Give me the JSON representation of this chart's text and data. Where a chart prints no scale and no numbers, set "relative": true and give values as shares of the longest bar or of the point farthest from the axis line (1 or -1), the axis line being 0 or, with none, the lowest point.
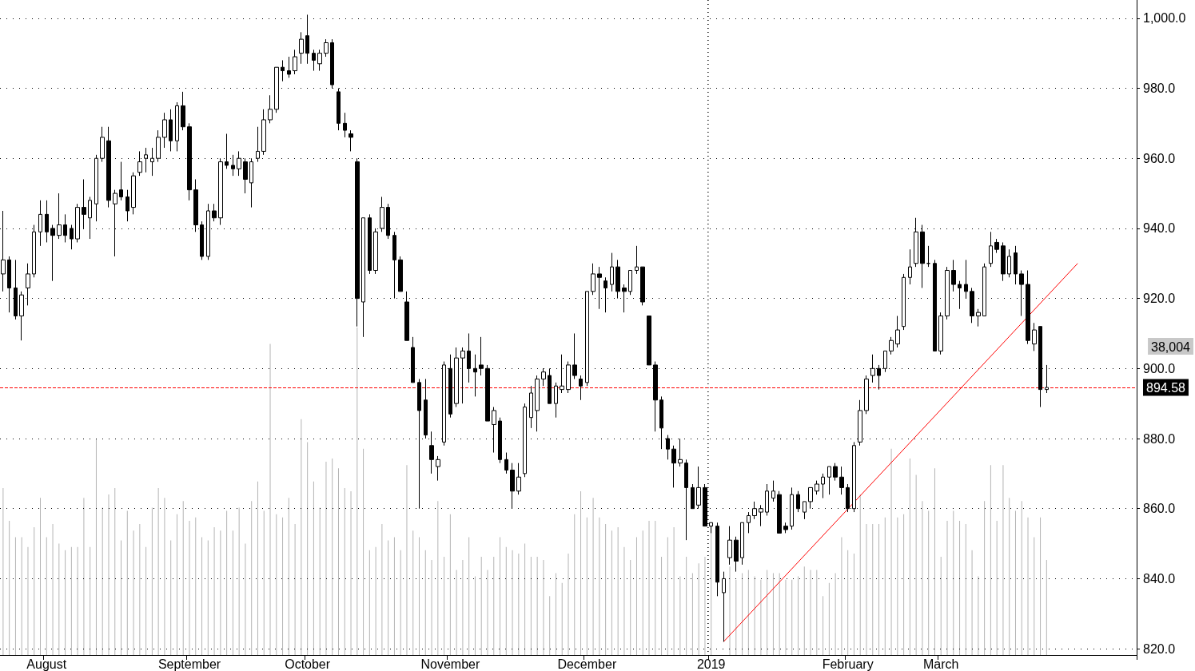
{
  "chart_data": [
    {
      "type": "candlestick",
      "categories": [
        null,
        null,
        null,
        null,
        null,
        null,
        null,
        "August",
        null,
        null,
        null,
        null,
        null,
        null,
        null,
        null,
        null,
        null,
        null,
        null,
        null,
        null,
        null,
        null,
        null,
        null,
        null,
        null,
        null,
        null,
        "September",
        null,
        null,
        null,
        null,
        null,
        null,
        null,
        null,
        null,
        null,
        null,
        null,
        null,
        null,
        null,
        null,
        null,
        null,
        "October",
        null,
        null,
        null,
        null,
        null,
        null,
        null,
        null,
        null,
        null,
        null,
        null,
        null,
        null,
        null,
        null,
        null,
        null,
        null,
        null,
        null,
        null,
        "November",
        null,
        null,
        null,
        null,
        null,
        null,
        null,
        null,
        null,
        null,
        null,
        null,
        null,
        null,
        null,
        null,
        null,
        null,
        null,
        null,
        null,
        "December",
        null,
        null,
        null,
        null,
        null,
        null,
        null,
        null,
        null,
        null,
        null,
        null,
        null,
        null,
        null,
        null,
        null,
        null,
        null,
        "2019",
        null,
        null,
        null,
        null,
        null,
        null,
        null,
        null,
        null,
        null,
        null,
        null,
        null,
        null,
        null,
        null,
        null,
        null,
        null,
        null,
        null,
        "February",
        null,
        null,
        null,
        null,
        null,
        null,
        null,
        null,
        null,
        null,
        null,
        null,
        null,
        null,
        "March",
        null,
        null,
        null,
        null,
        null,
        null,
        null,
        null,
        null,
        null,
        null,
        null,
        null,
        null,
        null,
        null,
        null,
        null,
        null,
        null,
        null,
        null,
        null,
        null,
        null,
        null,
        null,
        null,
        null,
        null,
        null
      ],
      "ohlc": [
        [
          927,
          945,
          922,
          931
        ],
        [
          931,
          932,
          916,
          923
        ],
        [
          923,
          931,
          914,
          915
        ],
        [
          915,
          922,
          908,
          921
        ],
        [
          923,
          930,
          918,
          927
        ],
        [
          927,
          941,
          926,
          939
        ],
        [
          939,
          948,
          935,
          944
        ],
        [
          944,
          948,
          936,
          939
        ],
        [
          940,
          941,
          925,
          938
        ],
        [
          938,
          950,
          937,
          941
        ],
        [
          941,
          944,
          936,
          938
        ],
        [
          940,
          941,
          934,
          937
        ],
        [
          937,
          947,
          936,
          946
        ],
        [
          946,
          954,
          940,
          944
        ],
        [
          943,
          949,
          937,
          948
        ],
        [
          947,
          961,
          942,
          960
        ],
        [
          960,
          969,
          959,
          966
        ],
        [
          965,
          969,
          946,
          948
        ],
        [
          947,
          951,
          932,
          950
        ],
        [
          951,
          959,
          948,
          949
        ],
        [
          949,
          951,
          942,
          945
        ],
        [
          946,
          956,
          944,
          955
        ],
        [
          956,
          962,
          955,
          959
        ],
        [
          960,
          963,
          956,
          961
        ],
        [
          959,
          963,
          955,
          960
        ],
        [
          960,
          968,
          959,
          966
        ],
        [
          966,
          973,
          963,
          971
        ],
        [
          971,
          974,
          962,
          965
        ],
        [
          965,
          976,
          962,
          975
        ],
        [
          975,
          979,
          968,
          969
        ],
        [
          969,
          970,
          948,
          951
        ],
        [
          951,
          954,
          939,
          941
        ],
        [
          941,
          942,
          931,
          932
        ],
        [
          932,
          947,
          931,
          945
        ],
        [
          945,
          947,
          942,
          943
        ],
        [
          943,
          960,
          941,
          959
        ],
        [
          959,
          967,
          957,
          958
        ],
        [
          958,
          961,
          955,
          957
        ],
        [
          957,
          962,
          955,
          960
        ],
        [
          959,
          960,
          950,
          954
        ],
        [
          953,
          960,
          946,
          959
        ],
        [
          960,
          969,
          959,
          962
        ],
        [
          962,
          974,
          961,
          971
        ],
        [
          971,
          978,
          970,
          974
        ],
        [
          974,
          986,
          973,
          986
        ],
        [
          986,
          988,
          982,
          985
        ],
        [
          985,
          989,
          983,
          984
        ],
        [
          985,
          991,
          984,
          989
        ],
        [
          990,
          996,
          987,
          994
        ],
        [
          995,
          1001,
          987,
          990
        ],
        [
          990,
          991,
          985,
          988
        ],
        [
          987,
          991,
          985,
          990
        ],
        [
          990,
          994,
          989,
          993
        ],
        [
          993,
          994,
          980,
          981
        ],
        [
          979,
          980,
          968,
          970
        ],
        [
          970,
          973,
          966,
          968
        ],
        [
          967,
          968,
          962,
          966
        ],
        [
          959,
          960,
          912,
          920
        ],
        [
          919,
          943,
          909,
          943
        ],
        [
          943,
          944,
          927,
          928
        ],
        [
          928,
          940,
          927,
          939
        ],
        [
          940,
          949,
          939,
          946
        ],
        [
          946,
          947,
          937,
          938
        ],
        [
          938,
          939,
          920,
          931
        ],
        [
          931,
          932,
          922,
          922
        ],
        [
          919,
          922,
          908,
          908
        ],
        [
          906,
          909,
          896,
          896
        ],
        [
          896,
          897,
          860,
          888
        ],
        [
          891,
          897,
          880,
          881
        ],
        [
          878,
          882,
          870,
          874
        ],
        [
          872,
          875,
          868,
          874
        ],
        [
          879,
          902,
          878,
          901
        ],
        [
          900,
          904,
          886,
          887
        ],
        [
          890,
          906,
          889,
          903
        ],
        [
          903,
          906,
          890,
          905
        ],
        [
          905,
          910,
          896,
          900
        ],
        [
          900,
          904,
          892,
          899
        ],
        [
          901,
          909,
          898,
          900
        ],
        [
          900,
          901,
          885,
          885
        ],
        [
          884,
          889,
          876,
          888
        ],
        [
          885,
          886,
          873,
          874
        ],
        [
          874,
          876,
          870,
          871
        ],
        [
          871,
          873,
          860,
          865
        ],
        [
          865,
          873,
          864,
          869
        ],
        [
          870,
          890,
          869,
          889
        ],
        [
          886,
          895,
          883,
          893
        ],
        [
          888,
          898,
          882,
          897
        ],
        [
          897,
          900,
          895,
          899
        ],
        [
          898,
          900,
          890,
          890
        ],
        [
          890,
          896,
          886,
          895
        ],
        [
          894,
          904,
          893,
          895
        ],
        [
          894,
          902,
          893,
          901
        ],
        [
          901,
          910,
          897,
          898
        ],
        [
          897,
          898,
          891,
          895
        ],
        [
          896,
          922,
          895,
          922
        ],
        [
          922,
          930,
          921,
          927
        ],
        [
          927,
          929,
          917,
          926
        ],
        [
          925,
          926,
          916,
          923
        ],
        [
          924,
          933,
          922,
          929
        ],
        [
          929,
          931,
          920,
          922
        ],
        [
          923,
          924,
          916,
          922
        ],
        [
          922,
          928,
          921,
          928
        ],
        [
          928,
          935,
          927,
          929
        ],
        [
          929,
          929,
          918,
          919
        ],
        [
          915,
          915,
          901,
          901
        ],
        [
          901,
          902,
          882,
          891
        ],
        [
          891,
          892,
          877,
          883
        ],
        [
          880,
          881,
          874,
          877
        ],
        [
          877,
          878,
          866,
          873
        ],
        [
          873,
          880,
          872,
          874
        ],
        [
          873,
          874,
          851,
          866
        ],
        [
          866,
          867,
          860,
          860
        ],
        [
          861,
          872,
          860,
          866
        ],
        [
          866,
          867,
          855,
          855
        ],
        [
          855,
          856,
          853,
          856
        ],
        [
          855,
          856,
          835,
          839
        ],
        [
          836,
          842,
          822,
          840
        ],
        [
          846,
          855,
          844,
          851
        ],
        [
          851,
          852,
          842,
          845
        ],
        [
          846,
          856,
          844,
          856
        ],
        [
          856,
          859,
          853,
          858
        ],
        [
          858,
          862,
          857,
          860
        ],
        [
          859,
          861,
          855,
          860
        ],
        [
          859,
          867,
          858,
          865
        ],
        [
          863,
          868,
          862,
          865
        ],
        [
          864,
          865,
          853,
          853
        ],
        [
          855,
          856,
          853,
          854
        ],
        [
          855,
          866,
          854,
          864
        ],
        [
          864,
          865,
          859,
          860
        ],
        [
          859,
          862,
          857,
          862
        ],
        [
          862,
          866,
          860,
          866
        ],
        [
          865,
          868,
          864,
          867
        ],
        [
          867,
          870,
          863,
          869
        ],
        [
          869,
          872,
          864,
          872
        ],
        [
          872,
          873,
          868,
          869
        ],
        [
          869,
          872,
          864,
          866
        ],
        [
          866,
          867,
          859,
          860
        ],
        [
          860,
          879,
          859,
          878
        ],
        [
          879,
          891,
          878,
          888
        ],
        [
          888,
          898,
          887,
          897
        ],
        [
          898,
          904,
          896,
          900
        ],
        [
          900,
          901,
          894,
          898
        ],
        [
          900,
          905,
          899,
          905
        ],
        [
          905,
          909,
          904,
          908
        ],
        [
          907,
          915,
          906,
          911
        ],
        [
          912,
          927,
          911,
          926
        ],
        [
          926,
          934,
          924,
          929
        ],
        [
          930,
          943,
          929,
          939
        ],
        [
          939,
          941,
          923,
          930
        ],
        [
          930,
          935,
          929,
          930
        ],
        [
          930,
          931,
          905,
          905
        ],
        [
          905,
          916,
          904,
          915
        ],
        [
          915,
          929,
          914,
          928
        ],
        [
          928,
          931,
          922,
          924
        ],
        [
          924,
          925,
          917,
          923
        ],
        [
          924,
          931,
          920,
          922
        ],
        [
          922,
          923,
          913,
          915
        ],
        [
          915,
          917,
          912,
          916
        ],
        [
          915,
          930,
          915,
          929
        ],
        [
          930,
          939,
          929,
          935
        ],
        [
          936,
          937,
          933,
          934
        ],
        [
          935,
          936,
          925,
          927
        ],
        [
          927,
          934,
          926,
          932
        ],
        [
          933,
          935,
          924,
          927
        ],
        [
          927,
          928,
          915,
          924
        ],
        [
          924,
          928,
          907,
          908
        ],
        [
          907,
          913,
          905,
          911
        ],
        [
          912,
          912,
          889,
          894
        ],
        [
          894,
          901,
          893,
          894.58
        ],
        null,
        null,
        null,
        null,
        null,
        null,
        null,
        null,
        null,
        null,
        null,
        null,
        null,
        null
      ],
      "series": [
        {
          "type": "line",
          "color": "#ff0000",
          "values": [
            null,
            null,
            null,
            null,
            null,
            null,
            null,
            null,
            null,
            null,
            null,
            null,
            null,
            null,
            null,
            null,
            null,
            null,
            null,
            null,
            null,
            null,
            null,
            null,
            null,
            null,
            null,
            null,
            null,
            null,
            null,
            null,
            null,
            null,
            null,
            null,
            null,
            null,
            null,
            null,
            null,
            null,
            null,
            null,
            null,
            null,
            null,
            null,
            null,
            null,
            null,
            null,
            null,
            null,
            null,
            null,
            null,
            null,
            null,
            null,
            null,
            null,
            null,
            null,
            null,
            null,
            null,
            null,
            null,
            null,
            null,
            null,
            null,
            null,
            null,
            null,
            null,
            null,
            null,
            null,
            null,
            null,
            null,
            null,
            null,
            null,
            null,
            null,
            null,
            null,
            null,
            null,
            null,
            null,
            null,
            null,
            null,
            null,
            null,
            null,
            null,
            null,
            null,
            null,
            null,
            null,
            null,
            null,
            null,
            null,
            null,
            null,
            null,
            null,
            null,
            null,
            822,
            null,
            null,
            null,
            null,
            null,
            null,
            null,
            null,
            null,
            null,
            null,
            null,
            null,
            null,
            null,
            null,
            null,
            null,
            null,
            null,
            null,
            null,
            null,
            null,
            null,
            null,
            null,
            null,
            null,
            null,
            null,
            null,
            null,
            null,
            null,
            null,
            null,
            null,
            null,
            null,
            null,
            null,
            null,
            null,
            null,
            null,
            null,
            null,
            null,
            null,
            null,
            null,
            null,
            null,
            null,
            null,
            930,
            null,
            null,
            null,
            null,
            null,
            null,
            null,
            null,
            null
          ]
        }
      ],
      "ylim": [
        818.2,
        1005.2
      ],
      "yticks": [
        {
          "value": 820,
          "label": "820.0"
        },
        {
          "value": 840,
          "label": "840.0"
        },
        {
          "value": 860,
          "label": "860.0"
        },
        {
          "value": 880,
          "label": "880.0"
        },
        {
          "value": 900,
          "label": "900.0"
        },
        {
          "value": 920,
          "label": "920.0"
        },
        {
          "value": 940,
          "label": "940.0"
        },
        {
          "value": 960,
          "label": "960.0"
        },
        {
          "value": 980,
          "label": "980.0"
        },
        {
          "value": 1000,
          "label": "1,000.0"
        }
      ],
      "grid": "y",
      "marker": "none",
      "ref_lines": [
        {
          "axis": "y",
          "value": 894.58,
          "label": "894.58",
          "color": "#ff0000",
          "line_style": "dashed"
        },
        {
          "axis": "x",
          "value": "2019",
          "color": "#000000",
          "line_style": "dotted"
        }
      ],
      "annotations": [
        "38,004"
      ]
    },
    {
      "type": "bar",
      "relative": true,
      "color": "#b4b4b4",
      "categories": [
        null,
        null,
        null,
        null,
        null,
        null,
        null,
        null,
        null,
        null,
        null,
        null,
        null,
        null,
        null,
        null,
        null,
        null,
        null,
        null,
        null,
        null,
        null,
        null,
        null,
        null,
        null,
        null,
        null,
        null,
        null,
        null,
        null,
        null,
        null,
        null,
        null,
        null,
        null,
        null,
        null,
        null,
        null,
        null,
        null,
        null,
        null,
        null,
        null,
        null,
        null,
        null,
        null,
        null,
        null,
        null,
        null,
        null,
        null,
        null,
        null,
        null,
        null,
        null,
        null,
        null,
        null,
        null,
        null,
        null,
        null,
        null,
        null,
        null,
        null,
        null,
        null,
        null,
        null,
        null,
        null,
        null,
        null,
        null,
        null,
        null,
        null,
        null,
        null,
        null,
        null,
        null,
        null,
        null,
        null,
        null,
        null,
        null,
        null,
        null,
        null,
        null,
        null,
        null,
        null,
        null,
        null,
        null,
        null,
        null,
        null,
        null,
        null,
        null,
        null,
        null,
        null,
        null,
        null,
        null,
        null,
        null,
        null,
        null,
        null,
        null,
        null,
        null,
        null,
        null,
        null,
        null,
        null,
        null,
        null,
        null,
        null,
        null,
        null,
        null,
        null,
        null,
        null,
        null,
        null,
        null,
        null,
        null,
        null,
        null,
        null,
        null,
        null,
        null,
        null,
        null,
        null,
        null,
        null,
        null,
        null,
        null,
        null,
        null,
        null,
        null,
        null,
        null,
        null,
        null,
        null,
        null,
        null,
        null,
        null,
        null,
        null,
        null,
        null,
        null,
        null,
        null,
        null
      ],
      "values": [
        0.51,
        0.41,
        0.36,
        0.36,
        0.33,
        0.39,
        0.48,
        0.36,
        0.4,
        0.34,
        0.32,
        0.33,
        0.33,
        0.48,
        0.33,
        0.66,
        0.45,
        0.49,
        0.51,
        0.35,
        0.44,
        0.38,
        0.4,
        0.33,
        0.45,
        0.51,
        0.48,
        0.35,
        0.43,
        0.47,
        0.41,
        0.42,
        0.36,
        0.35,
        0.39,
        0.38,
        0.44,
        0.38,
        0.45,
        0.34,
        0.47,
        0.53,
        0.44,
        0.95,
        0.43,
        0.42,
        0.48,
        0.4,
        0.72,
        0.65,
        0.53,
        0.45,
        0.59,
        0.6,
        0.57,
        0.51,
        0.5,
        1,
        0.63,
        0.32,
        0.33,
        0.4,
        0.35,
        0.36,
        0.32,
        0.58,
        0.38,
        0.36,
        0.32,
        0.29,
        0.47,
        0.3,
        0.43,
        0.26,
        0.29,
        0.36,
        0.24,
        0.3,
        0.26,
        0.3,
        0.36,
        0.33,
        0.32,
        0.31,
        0.34,
        0.3,
        0.3,
        0.29,
        0.18,
        0.25,
        0.22,
        0.31,
        0.43,
        0.5,
        0.42,
        0.48,
        0.42,
        0.4,
        0.38,
        0.39,
        0.33,
        0.29,
        0.36,
        0.38,
        0.41,
        0.41,
        0.3,
        0.36,
        0.39,
        0.24,
        0.3,
        0.25,
        0.28,
        0.3,
        0.4,
        null,
        null,
        0.27,
        0.23,
        0.25,
        0.26,
        0.24,
        0.23,
        0.26,
        0.25,
        0.25,
        0.23,
        0.23,
        0.24,
        0.27,
        0.26,
        0.26,
        0.18,
        0.22,
        0.25,
        0.36,
        0.32,
        0.31,
        0.49,
        0.4,
        0.4,
        0.4,
        0.42,
        0.63,
        0.42,
        0.43,
        0.6,
        0.55,
        0.47,
        0.44,
        0.57,
        0.3,
        0.41,
        0.44,
        0.41,
        0.4,
        0.32,
        0.24,
        0.47,
        0.58,
        0.41,
        0.58,
        0.48,
        0.44,
        0.47,
        0.42,
        0.36,
        0.42,
        0.29,
        null,
        null,
        null,
        null,
        null,
        null,
        null,
        null,
        null,
        null,
        null,
        null,
        null,
        null
      ]
    }
  ]
}
